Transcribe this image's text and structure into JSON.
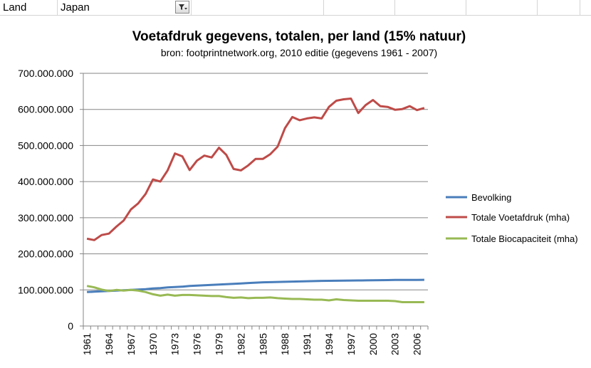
{
  "filter": {
    "label": "Land",
    "value": "Japan"
  },
  "colors": {
    "population": "#4a7ebb",
    "footprint": "#be4b48",
    "biocapacity": "#98b954"
  },
  "chart_data": {
    "type": "line",
    "title": "Voetafdruk gegevens, totalen, per land (15% natuur)",
    "subtitle": "bron: footprintnetwork.org, 2010 editie (gegevens 1961 - 2007)",
    "ylim": [
      0,
      700000000
    ],
    "yticks": [
      0,
      100000000,
      200000000,
      300000000,
      400000000,
      500000000,
      600000000,
      700000000
    ],
    "ytick_labels": [
      "0",
      "100.000.000",
      "200.000.000",
      "300.000.000",
      "400.000.000",
      "500.000.000",
      "600.000.000",
      "700.000.000"
    ],
    "x": [
      1961,
      1962,
      1963,
      1964,
      1965,
      1966,
      1967,
      1968,
      1969,
      1970,
      1971,
      1972,
      1973,
      1974,
      1975,
      1976,
      1977,
      1978,
      1979,
      1980,
      1981,
      1982,
      1983,
      1984,
      1985,
      1986,
      1987,
      1988,
      1989,
      1990,
      1991,
      1992,
      1993,
      1994,
      1995,
      1996,
      1997,
      1998,
      1999,
      2000,
      2001,
      2002,
      2003,
      2004,
      2005,
      2006,
      2007
    ],
    "xtick_labels": [
      "1961",
      "1964",
      "1967",
      "1970",
      "1973",
      "1976",
      "1979",
      "1982",
      "1985",
      "1988",
      "1991",
      "1994",
      "1997",
      "2000",
      "2003",
      "2006"
    ],
    "series": [
      {
        "name": "Bevolking",
        "color": "#4a7ebb",
        "values": [
          94000000,
          95000000,
          96000000,
          97000000,
          98000000,
          99000000,
          100000000,
          101000000,
          102000000,
          104000000,
          105000000,
          107000000,
          108000000,
          109000000,
          111000000,
          112000000,
          113000000,
          114000000,
          115000000,
          116000000,
          117000000,
          118000000,
          119000000,
          120000000,
          121000000,
          121500000,
          122000000,
          122500000,
          123000000,
          123500000,
          124000000,
          124500000,
          125000000,
          125200000,
          125500000,
          125800000,
          126000000,
          126200000,
          126400000,
          126600000,
          127000000,
          127200000,
          127500000,
          127600000,
          127700000,
          127800000,
          128000000
        ]
      },
      {
        "name": "Totale Voetafdruk (mha)",
        "color": "#be4b48",
        "values": [
          242000000,
          238000000,
          252000000,
          256000000,
          275000000,
          292000000,
          323000000,
          340000000,
          366000000,
          406000000,
          400000000,
          431000000,
          478000000,
          470000000,
          432000000,
          458000000,
          472000000,
          467000000,
          494000000,
          474000000,
          435000000,
          431000000,
          445000000,
          463000000,
          463000000,
          476000000,
          497000000,
          548000000,
          579000000,
          570000000,
          575000000,
          578000000,
          575000000,
          607000000,
          624000000,
          628000000,
          630000000,
          590000000,
          612000000,
          626000000,
          609000000,
          607000000,
          599000000,
          601000000,
          609000000,
          598000000,
          604000000
        ]
      },
      {
        "name": "Totale Biocapaciteit  (mha)",
        "color": "#98b954",
        "values": [
          111000000,
          107000000,
          101000000,
          97000000,
          100000000,
          98000000,
          100000000,
          98000000,
          94000000,
          88000000,
          84000000,
          87000000,
          84000000,
          86000000,
          86000000,
          85000000,
          84000000,
          83000000,
          83000000,
          80000000,
          78000000,
          79000000,
          77000000,
          78000000,
          78000000,
          79000000,
          77000000,
          76000000,
          75000000,
          75000000,
          74000000,
          73000000,
          73000000,
          71000000,
          74000000,
          72000000,
          71000000,
          70000000,
          70000000,
          70000000,
          70000000,
          70000000,
          69000000,
          66000000,
          66000000,
          66000000,
          66000000
        ]
      }
    ]
  }
}
